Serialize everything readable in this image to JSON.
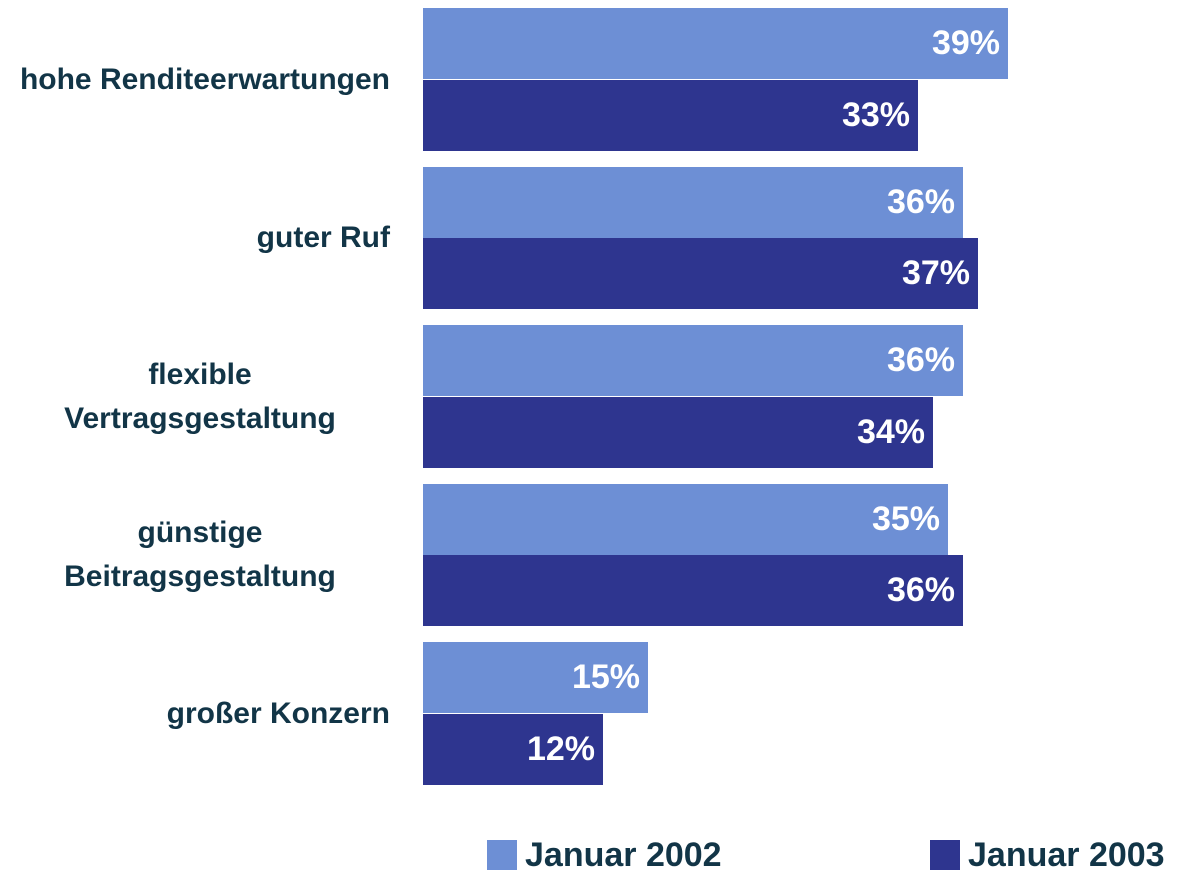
{
  "chart_data": {
    "type": "bar",
    "orientation": "horizontal",
    "categories": [
      "hohe Renditeerwartungen",
      "guter Ruf",
      "flexible Vertragsgestaltung",
      "günstige Beitragsgestaltung",
      "großer Konzern"
    ],
    "series": [
      {
        "name": "Januar 2002",
        "color": "#6d8fd5",
        "values": [
          39,
          36,
          36,
          35,
          15
        ],
        "value_labels": [
          "39%",
          "36%",
          "36%",
          "35%",
          "15%"
        ]
      },
      {
        "name": "Januar 2003",
        "color": "#2e358f",
        "values": [
          33,
          37,
          34,
          36,
          12
        ],
        "value_labels": [
          "33%",
          "37%",
          "34%",
          "36%",
          "12%"
        ]
      }
    ]
  }
}
